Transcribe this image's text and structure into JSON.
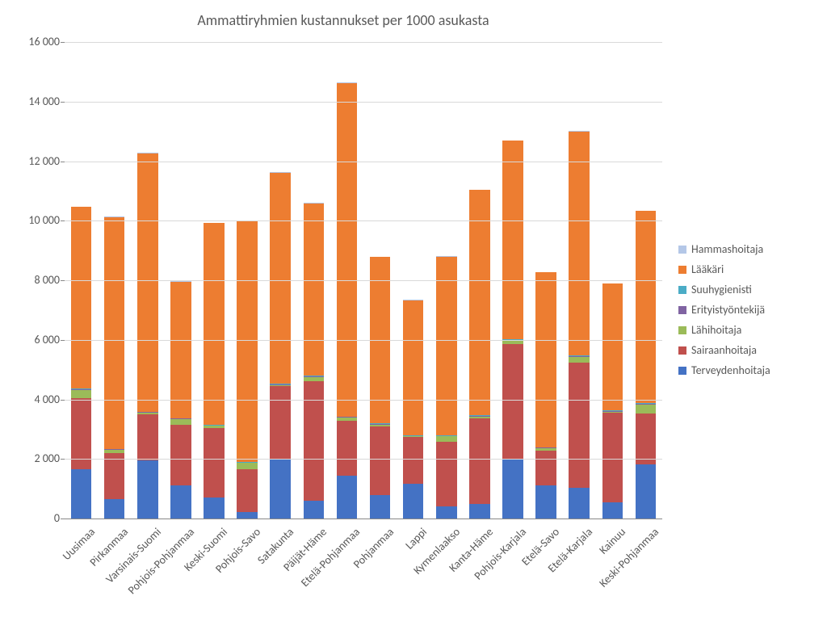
{
  "chart": {
    "type": "stacked-bar",
    "title": "Ammattiryhmien kustannukset per 1000 asukasta",
    "title_fontsize": 18,
    "background_color": "#ffffff",
    "grid_color": "#d9d9d9",
    "ylim": [
      0,
      16000
    ],
    "ytick_step": 2000,
    "yticks": [
      "0",
      "2 000",
      "4 000",
      "6 000",
      "8 000",
      "10 000",
      "12 000",
      "14 000",
      "16 000"
    ],
    "bar_width_ratio": 0.62,
    "label_fontsize": 14,
    "text_color": "#595959",
    "series": [
      {
        "key": "Terveydenhoitaja",
        "color": "#4472c4"
      },
      {
        "key": "Sairaanhoitaja",
        "color": "#c0504d"
      },
      {
        "key": "Lähihoitaja",
        "color": "#9bbb59"
      },
      {
        "key": "Erityistyöntekijä",
        "color": "#8064a2"
      },
      {
        "key": "Suuhygienisti",
        "color": "#4bacc6"
      },
      {
        "key": "Lääkäri",
        "color": "#ed7d31"
      },
      {
        "key": "Hammashoitaja",
        "color": "#b4c7e7"
      }
    ],
    "legend_order": [
      "Hammashoitaja",
      "Lääkäri",
      "Suuhygienisti",
      "Erityistyöntekijä",
      "Lähihoitaja",
      "Sairaanhoitaja",
      "Terveydenhoitaja"
    ],
    "legend_position": "right",
    "categories": [
      "Uusimaa",
      "Pirkanmaa",
      "Varsinais-Suomi",
      "Pohjois-Pohjanmaa",
      "Keski-Suomi",
      "Pohjois-Savo",
      "Satakunta",
      "Päijät-Häme",
      "Etelä-Pohjanmaa",
      "Pohjanmaa",
      "Lappi",
      "Kymenlaakso",
      "Kanta-Häme",
      "Pohjois-Karjala",
      "Etelä-Savo",
      "Etelä-Karjala",
      "Kainuu",
      "Keski-Pohjanmaa"
    ],
    "data": {
      "Terveydenhoitaja": [
        1650,
        650,
        1950,
        1100,
        700,
        230,
        1990,
        600,
        1430,
        800,
        1180,
        420,
        500,
        2000,
        1120,
        1030,
        550,
        1830
      ],
      "Sairaanhoitaja": [
        2400,
        1550,
        1550,
        2050,
        2350,
        1430,
        2460,
        4000,
        1860,
        2300,
        1550,
        2170,
        2870,
        3870,
        1160,
        4200,
        3000,
        1700
      ],
      "Lähihoitaja": [
        270,
        100,
        50,
        180,
        60,
        200,
        30,
        150,
        100,
        50,
        30,
        170,
        60,
        100,
        80,
        200,
        40,
        300
      ],
      "Erityistyöntekijä": [
        30,
        20,
        20,
        20,
        20,
        20,
        20,
        20,
        20,
        20,
        20,
        20,
        20,
        20,
        20,
        20,
        20,
        20
      ],
      "Suuhygienisti": [
        20,
        20,
        20,
        20,
        20,
        20,
        20,
        20,
        20,
        20,
        20,
        20,
        20,
        20,
        20,
        20,
        20,
        20
      ],
      "Lääkäri": [
        6100,
        7780,
        8680,
        4590,
        6770,
        8110,
        7100,
        5800,
        11200,
        5600,
        4530,
        6000,
        7560,
        6670,
        5870,
        7530,
        4250,
        6450
      ],
      "Hammashoitaja": [
        10,
        10,
        10,
        10,
        10,
        10,
        10,
        10,
        10,
        10,
        10,
        10,
        10,
        10,
        10,
        10,
        10,
        10
      ]
    }
  }
}
